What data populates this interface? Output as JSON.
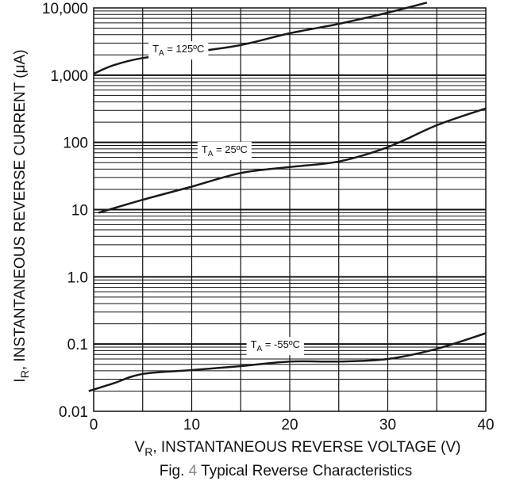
{
  "chart_data": {
    "type": "line",
    "x_scale": "linear",
    "y_scale": "log",
    "xlim": [
      0,
      40
    ],
    "ylim": [
      0.01,
      10000
    ],
    "grid": true,
    "xlabel": {
      "main": "V",
      "sub": "R",
      "rest": ", INSTANTANEOUS REVERSE VOLTAGE (V)"
    },
    "ylabel": {
      "main": "I",
      "sub": "R",
      "rest": ", INSTANTANEOUS REVERSE CURRENT (μA)"
    },
    "caption": {
      "prefix": "Fig. ",
      "number": "4",
      "text": " Typical Reverse Characteristics"
    },
    "x_ticks": [
      {
        "value": 0,
        "label": "0"
      },
      {
        "value": 10,
        "label": "10"
      },
      {
        "value": 20,
        "label": "20"
      },
      {
        "value": 30,
        "label": "30"
      },
      {
        "value": 40,
        "label": "40"
      }
    ],
    "y_ticks": [
      {
        "value": 10000,
        "label": "10,000"
      },
      {
        "value": 1000,
        "label": "1,000"
      },
      {
        "value": 100,
        "label": "100"
      },
      {
        "value": 10,
        "label": "10"
      },
      {
        "value": 1,
        "label": "1.0"
      },
      {
        "value": 0.1,
        "label": "0.1"
      },
      {
        "value": 0.01,
        "label": "0.01"
      }
    ],
    "series": [
      {
        "name": "T_A = 125°C",
        "label_main": "T",
        "label_sub": "A",
        "label_rest": " = 125ºC",
        "label_at": {
          "x": 6,
          "y": 2500
        },
        "x": [
          0,
          2,
          5,
          10,
          15,
          20,
          25,
          30,
          34
        ],
        "y": [
          1050,
          1400,
          1800,
          2200,
          2800,
          4200,
          5800,
          8500,
          12000
        ]
      },
      {
        "name": "T_A = 25°C",
        "label_main": "T",
        "label_sub": "A",
        "label_rest": " = 25ºC",
        "label_at": {
          "x": 11,
          "y": 80
        },
        "x": [
          0.5,
          5,
          10,
          15,
          20,
          25,
          30,
          35,
          40
        ],
        "y": [
          9,
          14,
          22,
          35,
          43,
          52,
          85,
          180,
          320
        ]
      },
      {
        "name": "T_A = -55°C",
        "label_main": "T",
        "label_sub": "A",
        "label_rest": " = -55ºC",
        "label_at": {
          "x": 16,
          "y": 0.1
        },
        "x": [
          -0.5,
          2,
          5,
          10,
          15,
          20,
          25,
          30,
          35,
          40
        ],
        "y": [
          0.02,
          0.026,
          0.036,
          0.041,
          0.047,
          0.055,
          0.055,
          0.06,
          0.085,
          0.145
        ]
      }
    ]
  }
}
